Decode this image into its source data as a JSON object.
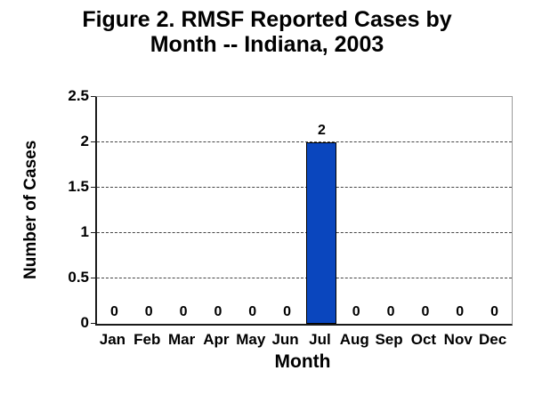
{
  "title_line1": "Figure 2. RMSF Reported Cases by",
  "title_line2": "Month -- Indiana, 2003",
  "chart_data": {
    "type": "bar",
    "title": "Figure 2. RMSF Reported Cases by Month -- Indiana, 2003",
    "categories": [
      "Jan",
      "Feb",
      "Mar",
      "Apr",
      "May",
      "Jun",
      "Jul",
      "Aug",
      "Sep",
      "Oct",
      "Nov",
      "Dec"
    ],
    "values": [
      0,
      0,
      0,
      0,
      0,
      0,
      2,
      0,
      0,
      0,
      0,
      0
    ],
    "data_labels": [
      "0",
      "0",
      "0",
      "0",
      "0",
      "0",
      "2",
      "0",
      "0",
      "0",
      "0",
      "0"
    ],
    "xlabel": "Month",
    "ylabel": "Number of Cases",
    "ylim": [
      0,
      2.5
    ],
    "yticks": [
      0,
      0.5,
      1,
      1.5,
      2,
      2.5
    ],
    "grid": "horizontal-dotted",
    "legend": "none",
    "bar_color": "#0a46be",
    "bar_border_color": "#000000",
    "gridline_color": "#444444",
    "axis_color": "#1a1a1a",
    "plot_border_color": "#9a9a9a",
    "text_color": "#000000"
  }
}
